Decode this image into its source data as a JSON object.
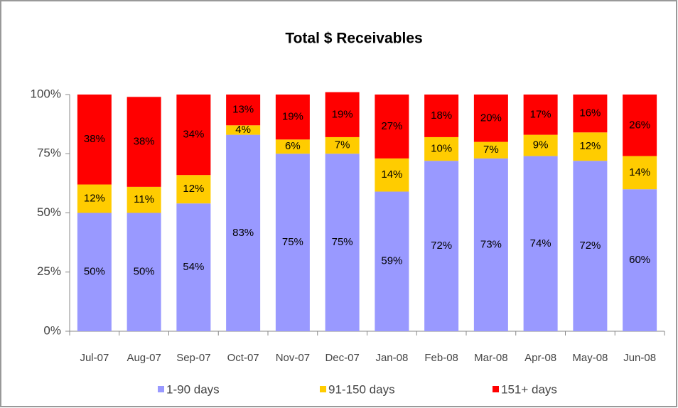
{
  "chart_data": {
    "type": "stacked-bar",
    "title": "Total $ Receivables",
    "categories": [
      "Jul-07",
      "Aug-07",
      "Sep-07",
      "Oct-07",
      "Nov-07",
      "Dec-07",
      "Jan-08",
      "Feb-08",
      "Mar-08",
      "Apr-08",
      "May-08",
      "Jun-08"
    ],
    "series": [
      {
        "name": "1-90 days",
        "color": "#9999ff",
        "values": [
          50,
          50,
          54,
          83,
          75,
          75,
          59,
          72,
          73,
          74,
          72,
          60
        ],
        "value_labels": [
          "50%",
          "50%",
          "54%",
          "83%",
          "75%",
          "75%",
          "59%",
          "72%",
          "73%",
          "74%",
          "72%",
          "60%"
        ]
      },
      {
        "name": "91-150 days",
        "color": "#ffcc00",
        "values": [
          12,
          11,
          12,
          4,
          6,
          7,
          14,
          10,
          7,
          9,
          12,
          14
        ],
        "value_labels": [
          "12%",
          "11%",
          "12%",
          "4%",
          "6%",
          "7%",
          "14%",
          "10%",
          "7%",
          "9%",
          "12%",
          "14%"
        ]
      },
      {
        "name": "151+ days",
        "color": "#ff0000",
        "values": [
          38,
          38,
          34,
          13,
          19,
          19,
          27,
          18,
          20,
          17,
          16,
          26
        ],
        "value_labels": [
          "38%",
          "38%",
          "34%",
          "13%",
          "19%",
          "19%",
          "27%",
          "18%",
          "20%",
          "17%",
          "16%",
          "26%"
        ]
      }
    ],
    "ylim": [
      0,
      100
    ],
    "yticks": [
      {
        "value": 0,
        "label": "0%"
      },
      {
        "value": 25,
        "label": "25%"
      },
      {
        "value": 50,
        "label": "50%"
      },
      {
        "value": 75,
        "label": "75%"
      },
      {
        "value": 100,
        "label": "100%"
      }
    ],
    "legend": "bottom"
  }
}
